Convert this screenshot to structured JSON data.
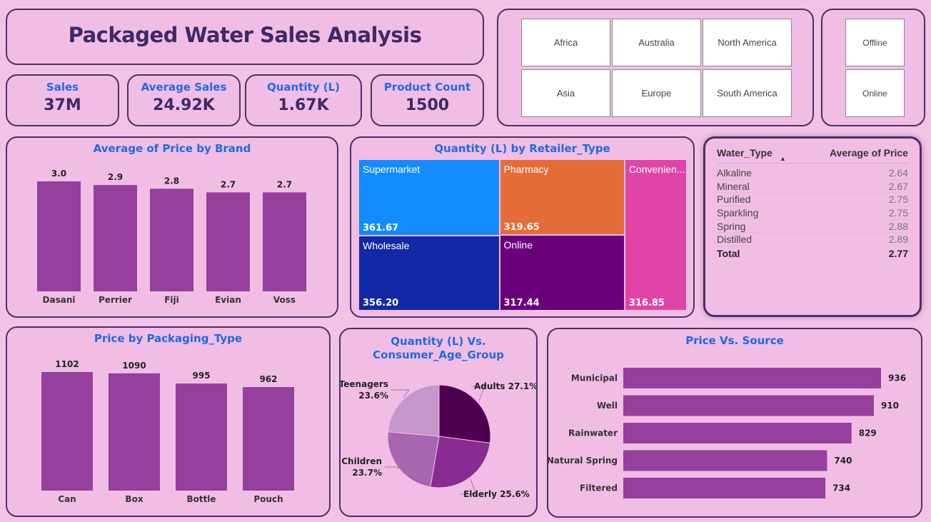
{
  "header": {
    "title": "Packaged Water Sales Analysis"
  },
  "kpis": [
    {
      "label": "Sales",
      "value": "37M"
    },
    {
      "label": "Average Sales",
      "value": "24.92K"
    },
    {
      "label": "Quantity (L)",
      "value": "1.67K"
    },
    {
      "label": "Product Count",
      "value": "1500"
    }
  ],
  "region_slicer": {
    "options": [
      "Africa",
      "Australia",
      "North America",
      "Asia",
      "Europe",
      "South America"
    ]
  },
  "channel_slicer": {
    "options": [
      "Offline",
      "Online"
    ]
  },
  "colors": {
    "bar": "#94409c",
    "pie": [
      "#4d0050",
      "#8a2b92",
      "#a866b1",
      "#c596c9"
    ],
    "treemap": [
      "#138cff",
      "#e66c37",
      "#e044a7",
      "#1129a5",
      "#6b007b"
    ]
  },
  "price_table": {
    "columns": [
      "Water_Type",
      "Average of Price"
    ],
    "rows": [
      {
        "type": "Alkaline",
        "price": "2.64"
      },
      {
        "type": "Mineral",
        "price": "2.67"
      },
      {
        "type": "Purified",
        "price": "2.75"
      },
      {
        "type": "Sparkling",
        "price": "2.75"
      },
      {
        "type": "Spring",
        "price": "2.88"
      },
      {
        "type": "Distilled",
        "price": "2.89"
      }
    ],
    "total_label": "Total",
    "total_value": "2.77"
  },
  "chart_data": [
    {
      "type": "bar",
      "title": "Average of Price by Brand",
      "categories": [
        "Dasani",
        "Perrier",
        "Fiji",
        "Evian",
        "Voss"
      ],
      "values": [
        3.0,
        2.9,
        2.8,
        2.7,
        2.7
      ],
      "labels": [
        "3.0",
        "2.9",
        "2.8",
        "2.7",
        "2.7"
      ],
      "ylim": [
        0,
        3.0
      ]
    },
    {
      "type": "treemap",
      "title": "Quantity (L) by Retailer_Type",
      "categories": [
        "Supermarket",
        "Pharmacy",
        "Convenien...",
        "Wholesale",
        "Online"
      ],
      "values": [
        361.67,
        319.65,
        316.85,
        356.2,
        317.44
      ],
      "labels": [
        "361.67",
        "319.65",
        "316.85",
        "356.20",
        "317.44"
      ]
    },
    {
      "type": "bar",
      "title": "Price by Packaging_Type",
      "categories": [
        "Can",
        "Box",
        "Bottle",
        "Pouch"
      ],
      "values": [
        1102,
        1090,
        995,
        962
      ],
      "labels": [
        "1102",
        "1090",
        "995",
        "962"
      ],
      "ylim": [
        0,
        1102
      ]
    },
    {
      "type": "pie",
      "title": "Quantity (L) Vs. Consumer_Age_Group",
      "title_lines": [
        "Quantity (L) Vs.",
        "Consumer_Age_Group"
      ],
      "categories": [
        "Adults",
        "Elderly",
        "Children",
        "Teenagers"
      ],
      "values": [
        27.1,
        25.6,
        23.7,
        23.6
      ],
      "labels": [
        "27.1%",
        "25.6%",
        "23.7%",
        "23.6%"
      ]
    },
    {
      "type": "bar",
      "orientation": "horizontal",
      "title": "Price Vs. Source",
      "categories": [
        "Municipal",
        "Well",
        "Rainwater",
        "Natural Spring",
        "Filtered"
      ],
      "values": [
        936,
        910,
        829,
        740,
        734
      ],
      "labels": [
        "936",
        "910",
        "829",
        "740",
        "734"
      ],
      "xlim": [
        0,
        936
      ]
    }
  ]
}
